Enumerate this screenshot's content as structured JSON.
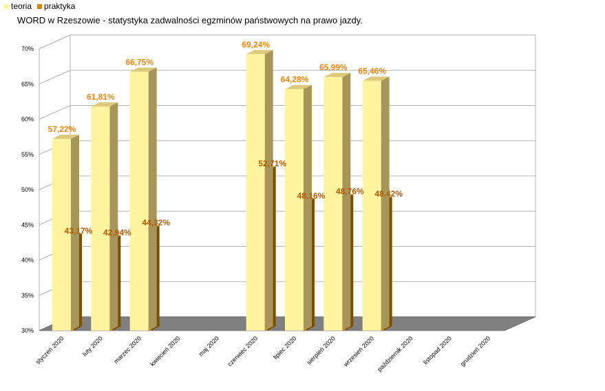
{
  "legend": {
    "teoria_label": "teoria",
    "praktyka_label": "praktyka"
  },
  "title": "WORD w Rzeszowie - statystyka zadwalności egzminów państwowych na prawo jazdy.",
  "chart_data": {
    "type": "bar",
    "title": "WORD w Rzeszowie - statystyka zadwalności egzminów państwowych na prawo jazdy.",
    "xlabel": "",
    "ylabel": "",
    "ylim": [
      30,
      70
    ],
    "yticks": [
      "30%",
      "35%",
      "40%",
      "45%",
      "50%",
      "55%",
      "60%",
      "65%",
      "70%"
    ],
    "grid": true,
    "legend_position": "top-left",
    "three_d": true,
    "categories": [
      "styczeń 2020",
      "luty 2020",
      "marzec 2020",
      "kwiecień 2020",
      "maj 2020",
      "czerwiec 2020",
      "lipiec 2020",
      "sierpień 2020",
      "wrzesień 2020",
      "październik 2020",
      "listopad 2020",
      "grudzień 2020"
    ],
    "series": [
      {
        "name": "teoria",
        "color": "#FFF3A0",
        "values": [
          57.22,
          61.81,
          66.75,
          null,
          null,
          69.24,
          64.28,
          65.99,
          65.46,
          null,
          null,
          null
        ],
        "labels": [
          "57,22%",
          "61,81%",
          "66,75%",
          "",
          "",
          "69,24%",
          "64,28%",
          "65,99%",
          "65,46%",
          "",
          "",
          ""
        ]
      },
      {
        "name": "praktyka",
        "color": "#C8860A",
        "values": [
          43.17,
          42.94,
          44.32,
          null,
          null,
          52.71,
          48.16,
          48.76,
          48.42,
          null,
          null,
          null
        ],
        "labels": [
          "43,17%",
          "42,94%",
          "44,32%",
          "",
          "",
          "52,71%",
          "48,16%",
          "48,76%",
          "48,42%",
          "",
          "",
          ""
        ]
      }
    ]
  }
}
